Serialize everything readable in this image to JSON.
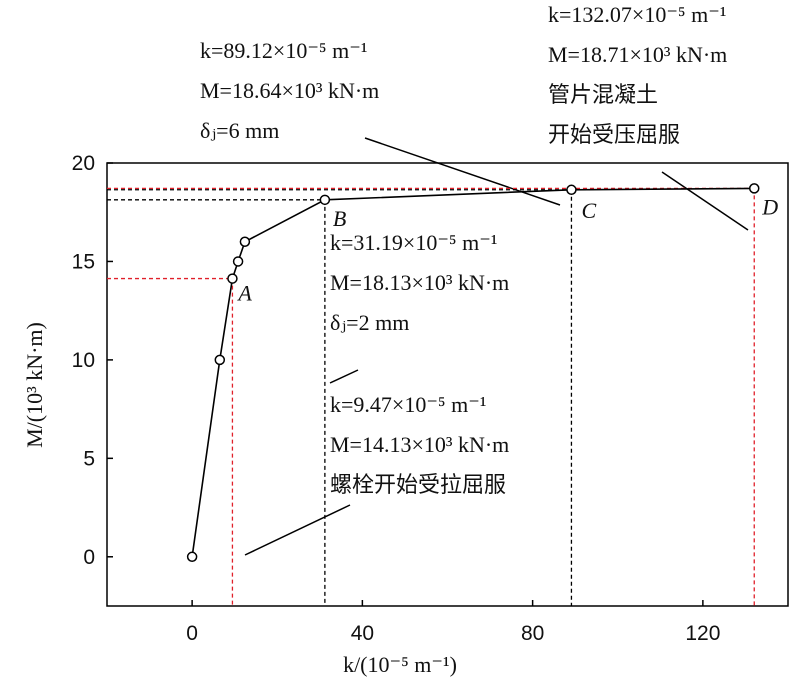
{
  "chart_data": {
    "type": "line",
    "x_label": "k/(10⁻⁵ m⁻¹)",
    "y_label": "M/(10³ kN·m)",
    "x": [
      0,
      6.5,
      9.47,
      10.8,
      12.4,
      31.19,
      89.12,
      132.07
    ],
    "series": [
      {
        "color": "#000000",
        "values": [
          0,
          10,
          14.13,
          15,
          16,
          18.13,
          18.64,
          18.71
        ]
      }
    ],
    "xlim": [
      -20,
      140
    ],
    "ylim": [
      -2.5,
      20
    ],
    "xticks": [
      0,
      40,
      80,
      120
    ],
    "yticks": [
      0,
      5,
      10,
      15,
      20
    ],
    "reference_points": [
      {
        "label": "A",
        "x": 9.47,
        "y": 14.13,
        "color": "#e0202a"
      },
      {
        "label": "B",
        "x": 31.19,
        "y": 18.13,
        "color": "#000000"
      },
      {
        "label": "C",
        "x": 89.12,
        "y": 18.64,
        "color": "#000000"
      },
      {
        "label": "D",
        "x": 132.07,
        "y": 18.71,
        "color": "#e0202a"
      }
    ],
    "annotations": [
      {
        "lines": [
          "k=89.12×10⁻⁵ m⁻¹",
          "M=18.64×10³ kN·m",
          "δⱼ=6 mm"
        ]
      },
      {
        "lines": [
          "k=132.07×10⁻⁵ m⁻¹",
          "M=18.71×10³ kN·m",
          "管片混凝土",
          "开始受压屈服"
        ]
      },
      {
        "lines": [
          "k=31.19×10⁻⁵ m⁻¹",
          "M=18.13×10³ kN·m",
          "δⱼ=2 mm"
        ]
      },
      {
        "lines": [
          "k=9.47×10⁻⁵ m⁻¹",
          "M=14.13×10³ kN·m",
          "螺栓开始受拉屈服"
        ]
      }
    ]
  }
}
